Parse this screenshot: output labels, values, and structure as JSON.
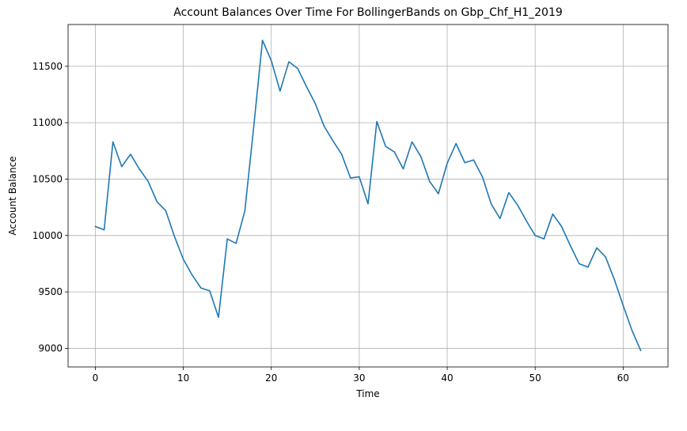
{
  "chart_data": {
    "type": "line",
    "title": "Account Balances Over Time For BollingerBands on Gbp_Chf_H1_2019",
    "xlabel": "Time",
    "ylabel": "Account Balance",
    "xlim": [
      -3.1,
      65.1
    ],
    "ylim": [
      8835,
      11870
    ],
    "xticks": [
      0,
      10,
      20,
      30,
      40,
      50,
      60
    ],
    "yticks": [
      9000,
      9500,
      10000,
      10500,
      11000,
      11500
    ],
    "grid": true,
    "line_color": "#1f77b4",
    "series": [
      {
        "x": [
          0,
          1,
          2,
          3,
          4,
          5,
          6,
          7,
          8,
          9,
          10,
          11,
          12,
          13,
          14,
          15,
          16,
          17,
          18,
          19,
          20,
          21,
          22,
          23,
          24,
          25,
          26,
          27,
          28,
          29,
          30,
          31,
          32,
          33,
          34,
          35,
          36,
          37,
          38,
          39,
          40,
          41,
          42,
          43,
          44,
          45,
          46,
          47,
          48,
          49,
          50,
          51,
          52,
          53,
          54,
          55,
          56,
          57,
          58,
          59,
          60,
          61,
          62
        ],
        "values": [
          10080,
          10050,
          10830,
          10610,
          10720,
          10590,
          10480,
          10300,
          10220,
          9990,
          9790,
          9650,
          9535,
          9510,
          9275,
          9970,
          9930,
          10220,
          10960,
          11730,
          11550,
          11280,
          11540,
          11480,
          11320,
          11170,
          10970,
          10840,
          10720,
          10510,
          10520,
          10280,
          11010,
          10790,
          10740,
          10590,
          10830,
          10700,
          10480,
          10370,
          10640,
          10815,
          10645,
          10670,
          10520,
          10280,
          10150,
          10380,
          10270,
          10130,
          10000,
          9970,
          10190,
          10080,
          9910,
          9750,
          9720,
          9890,
          9810,
          9610,
          9380,
          9160,
          8980
        ]
      }
    ]
  }
}
